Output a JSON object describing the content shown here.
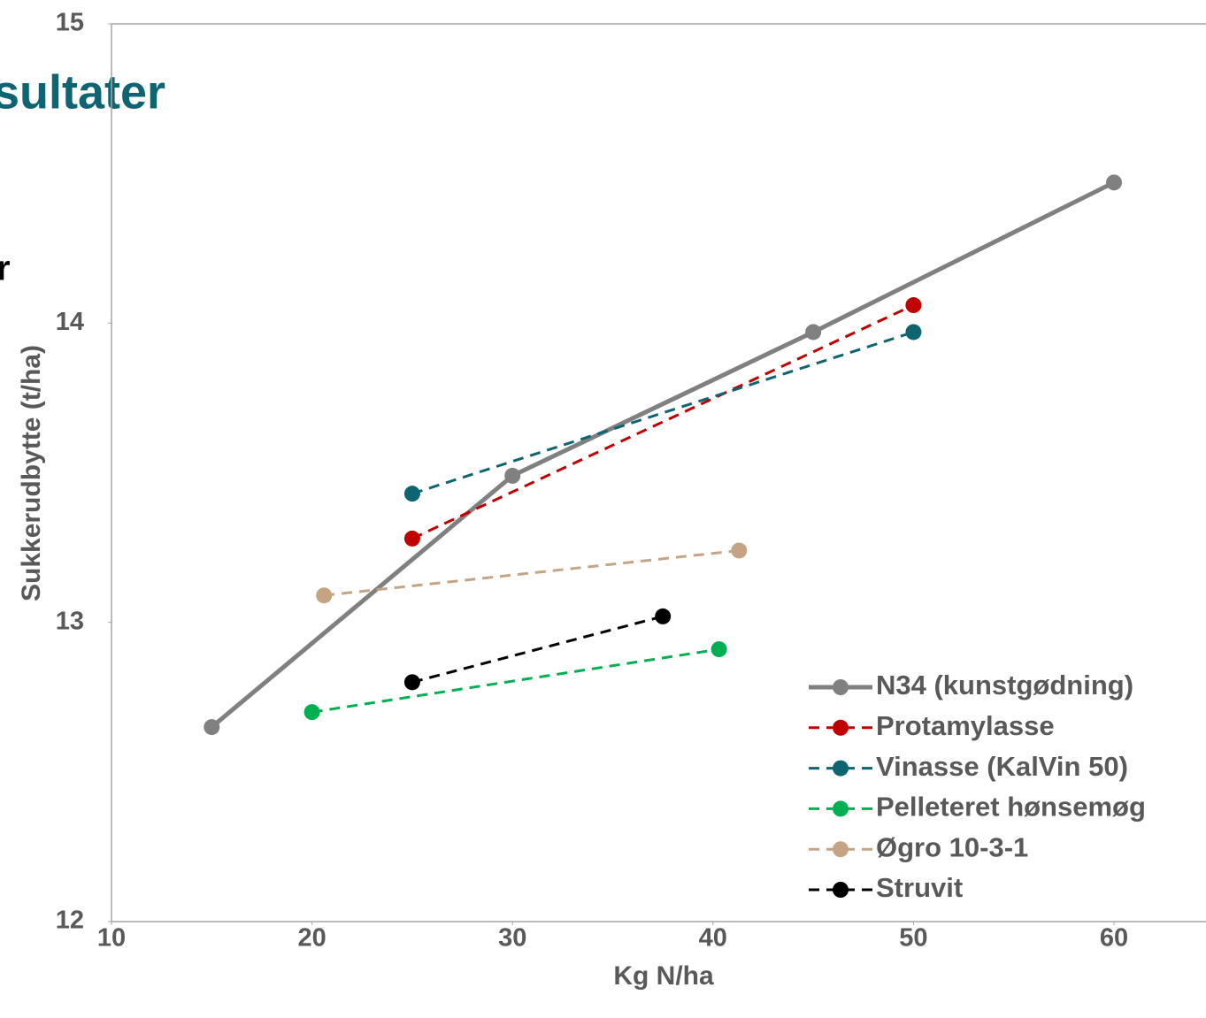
{
  "slide": {
    "title": "sultater",
    "text": "r"
  },
  "chart_data": {
    "type": "line",
    "x_label": "Kg N/ha",
    "y_label": "Sukkerudbytte (t/ha)",
    "xlim": [
      10,
      64.5
    ],
    "xticks": [
      10,
      20,
      30,
      40,
      50,
      60
    ],
    "ylim": [
      12,
      15
    ],
    "yticks": [
      12,
      13,
      14,
      15
    ],
    "legend": "bottom-right",
    "series": [
      {
        "name": "N34 (kunstgødning)",
        "color": "#808080",
        "line_style": "solid",
        "x": [
          15,
          30,
          45,
          60
        ],
        "values": [
          12.65,
          13.49,
          13.97,
          14.47
        ]
      },
      {
        "name": "Protamylasse",
        "color": "#c00000",
        "line_style": "dashed",
        "x": [
          25,
          50
        ],
        "values": [
          13.28,
          14.06
        ]
      },
      {
        "name": "Vinasse (KalVin 50)",
        "color": "#0e6470",
        "line_style": "dashed",
        "x": [
          25,
          50
        ],
        "values": [
          13.43,
          13.97
        ]
      },
      {
        "name": "Pelleteret hønsemøg",
        "color": "#00b050",
        "line_style": "dashed",
        "x": [
          20,
          40.3
        ],
        "values": [
          12.7,
          12.91
        ]
      },
      {
        "name": "Øgro 10-3-1",
        "color": "#c4a484",
        "line_style": "dashed",
        "x": [
          20.6,
          41.3
        ],
        "values": [
          13.09,
          13.24
        ]
      },
      {
        "name": "Struvit",
        "color": "#000000",
        "line_style": "dashed",
        "x": [
          25,
          37.5
        ],
        "values": [
          12.8,
          13.02
        ]
      }
    ]
  }
}
